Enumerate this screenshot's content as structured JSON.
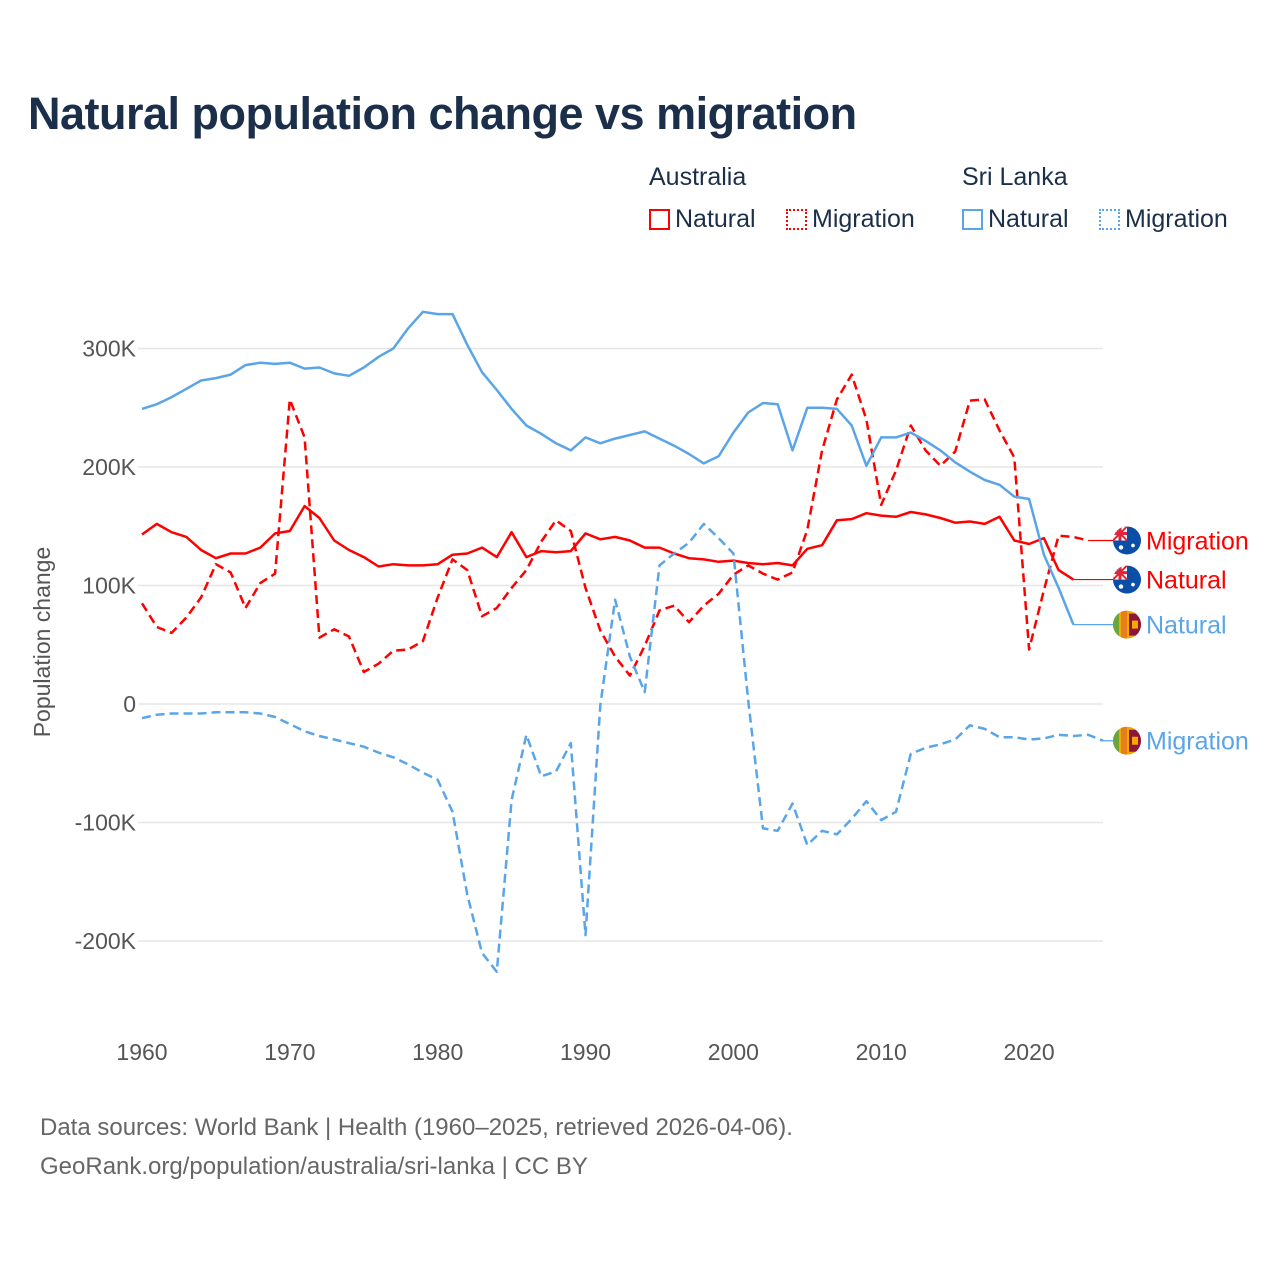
{
  "title": "Natural population change vs migration",
  "legend": {
    "groups": [
      {
        "name": "Australia",
        "items": [
          {
            "label": "Natural",
            "style": "solid"
          },
          {
            "label": "Migration",
            "style": "dotted"
          }
        ],
        "color": "#ff0000"
      },
      {
        "name": "Sri Lanka",
        "items": [
          {
            "label": "Natural",
            "style": "solid"
          },
          {
            "label": "Migration",
            "style": "dotted"
          }
        ],
        "color": "#5aa5e8"
      }
    ]
  },
  "footer": {
    "line1": "Data sources: World Bank | Health (1960–2025, retrieved 2026-04-06).",
    "line2": "GeoRank.org/population/australia/sri-lanka | CC BY"
  },
  "chart_data": {
    "type": "line",
    "title": "Natural population change vs migration",
    "xlabel": "",
    "ylabel": "Population change",
    "xlim": [
      1960,
      2025
    ],
    "ylim": [
      -250000,
      340000
    ],
    "x_ticks": [
      1960,
      1970,
      1980,
      1990,
      2000,
      2010,
      2020
    ],
    "x_tick_labels": [
      "1960",
      "1970",
      "1980",
      "1990",
      "2000",
      "2010",
      "2020"
    ],
    "y_ticks": [
      -200000,
      -100000,
      0,
      100000,
      200000,
      300000
    ],
    "y_tick_labels": [
      "-200K",
      "-100K",
      "0",
      "100K",
      "200K",
      "300K"
    ],
    "grid": true,
    "legend_position": "top-right",
    "series": [
      {
        "name": "Australia Natural",
        "end_label": "Natural",
        "country": "Australia",
        "color": "#ff0000",
        "dash": "solid",
        "start_year": 1960,
        "values_k": [
          143,
          152,
          145,
          141,
          130,
          123,
          127,
          127,
          132,
          144,
          146,
          167,
          157,
          138,
          130,
          124,
          116,
          118,
          117,
          117,
          118,
          126,
          127,
          132,
          124,
          145,
          124,
          129,
          128,
          129,
          144,
          139,
          141,
          138,
          132,
          132,
          127,
          123,
          122,
          120,
          121,
          119,
          118,
          119,
          117,
          131,
          134,
          155,
          156,
          161,
          159,
          158,
          162,
          160,
          157,
          153,
          154,
          152,
          158,
          138,
          135,
          140,
          113,
          105
        ]
      },
      {
        "name": "Australia Migration",
        "end_label": "Migration",
        "country": "Australia",
        "color": "#ff0000",
        "dash": "dashed",
        "start_year": 1960,
        "values_k": [
          85,
          65,
          60,
          73,
          90,
          118,
          111,
          81,
          102,
          110,
          257,
          225,
          56,
          63,
          57,
          27,
          34,
          45,
          46,
          53,
          90,
          122,
          113,
          74,
          81,
          98,
          113,
          137,
          155,
          146,
          98,
          62,
          40,
          24,
          49,
          79,
          83,
          69,
          83,
          93,
          109,
          117,
          110,
          105,
          111,
          147,
          214,
          257,
          278,
          240,
          168,
          197,
          235,
          214,
          201,
          213,
          256,
          257,
          231,
          208,
          46,
          96,
          142,
          141,
          138
        ]
      },
      {
        "name": "Sri Lanka Natural",
        "end_label": "Natural",
        "country": "Sri Lanka",
        "color": "#5aa5e8",
        "dash": "solid",
        "start_year": 1960,
        "values_k": [
          249,
          253,
          259,
          266,
          273,
          275,
          278,
          286,
          288,
          287,
          288,
          283,
          284,
          279,
          277,
          284,
          293,
          300,
          317,
          331,
          329,
          329,
          303,
          280,
          265,
          249,
          235,
          228,
          220,
          214,
          225,
          220,
          224,
          227,
          230,
          224,
          218,
          211,
          203,
          209,
          229,
          246,
          254,
          253,
          214,
          250,
          250,
          249,
          235,
          201,
          225,
          225,
          229,
          222,
          214,
          204,
          196,
          189,
          185,
          175,
          173,
          126,
          98,
          67
        ]
      },
      {
        "name": "Sri Lanka Migration",
        "end_label": "Migration",
        "country": "Sri Lanka",
        "color": "#5aa5e8",
        "dash": "dashed",
        "start_year": 1960,
        "values_k": [
          -12,
          -9,
          -8,
          -8,
          -8,
          -7,
          -7,
          -7,
          -8,
          -11,
          -17,
          -23,
          -27,
          -30,
          -33,
          -36,
          -41,
          -45,
          -51,
          -58,
          -64,
          -91,
          -161,
          -210,
          -226,
          -81,
          -26,
          -61,
          -57,
          -33,
          -195,
          -1,
          88,
          40,
          10,
          117,
          127,
          136,
          152,
          140,
          127,
          3,
          -105,
          -107,
          -84,
          -119,
          -107,
          -110,
          -97,
          -82,
          -98,
          -91,
          -42,
          -37,
          -34,
          -30,
          -18,
          -21,
          -28,
          -28,
          -30,
          -29,
          -26,
          -27,
          -26,
          -31
        ]
      }
    ]
  }
}
